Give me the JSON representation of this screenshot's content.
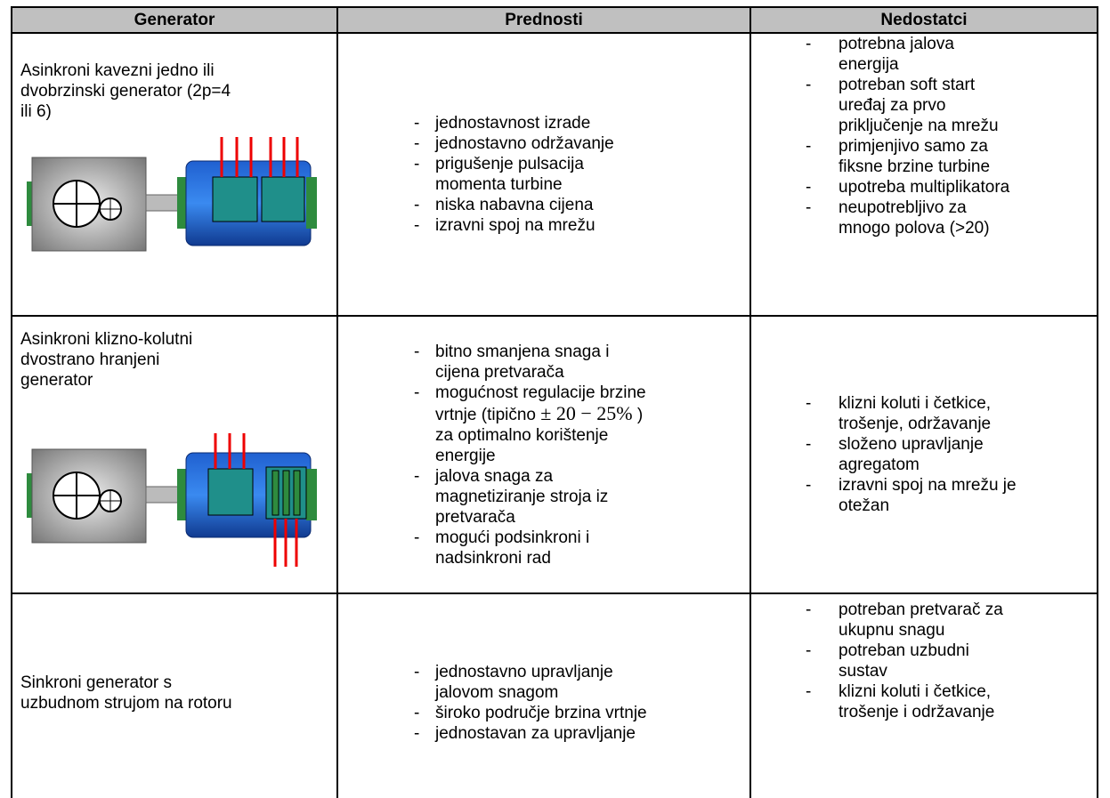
{
  "header": [
    "Generator",
    "Prednosti",
    "Nedostatci"
  ],
  "rows": [
    {
      "generator": "Asinkroni kavezni jedno ili\ndvobrzinski generator (2p=4\nili 6)",
      "prednosti": [
        "jednostavnost izrade",
        "jednostavno održavanje",
        "prigušenje pulsacija\nmomenta turbine",
        "niska nabavna cijena",
        "izravni spoj na mrežu"
      ],
      "nedostatci": [
        "potrebna jalova\nenergija",
        "potreban soft start\nuređaj za prvo\npriključenje na mrežu",
        "primjenjivo samo za\nfiksne brzine turbine",
        "upotreba multiplikatora",
        "neupotrebljivo za\nmnogo polova (>20)"
      ]
    },
    {
      "generator": "Asinkroni klizno-kolutni\ndvostrano hranjeni\ngenerator",
      "prednosti": [
        "bitno smanjena snaga i\ncijena pretvarača",
        [
          "mogućnost regulacije brzine\nvrtnje (tipično ",
          "± 20 − 25%",
          " )\nza optimalno korištenje\nenergije"
        ],
        "jalova snaga za\nmagnetiziranje stroja iz\npretvarača",
        "mogući podsinkroni i\nnadsinkroni rad"
      ],
      "nedostatci": [
        "klizni koluti i četkice,\ntrošenje, održavanje",
        "složeno upravljanje\nagregatom",
        "izravni spoj na mrežu je\notežan"
      ]
    },
    {
      "generator": "Sinkroni generator s\nuzbudnom strujom na rotoru",
      "prednosti": [
        "jednostavno upravljanje\njalovom snagom",
        "široko područje brzina vrtnje",
        "jednostavan za upravljanje"
      ],
      "nedostatci": [
        "potreban pretvarač za\nukupnu snagu",
        "potreban uzbudni\nsustav",
        "klizni koluti i četkice,\ntrošenje i održavanje"
      ]
    }
  ]
}
